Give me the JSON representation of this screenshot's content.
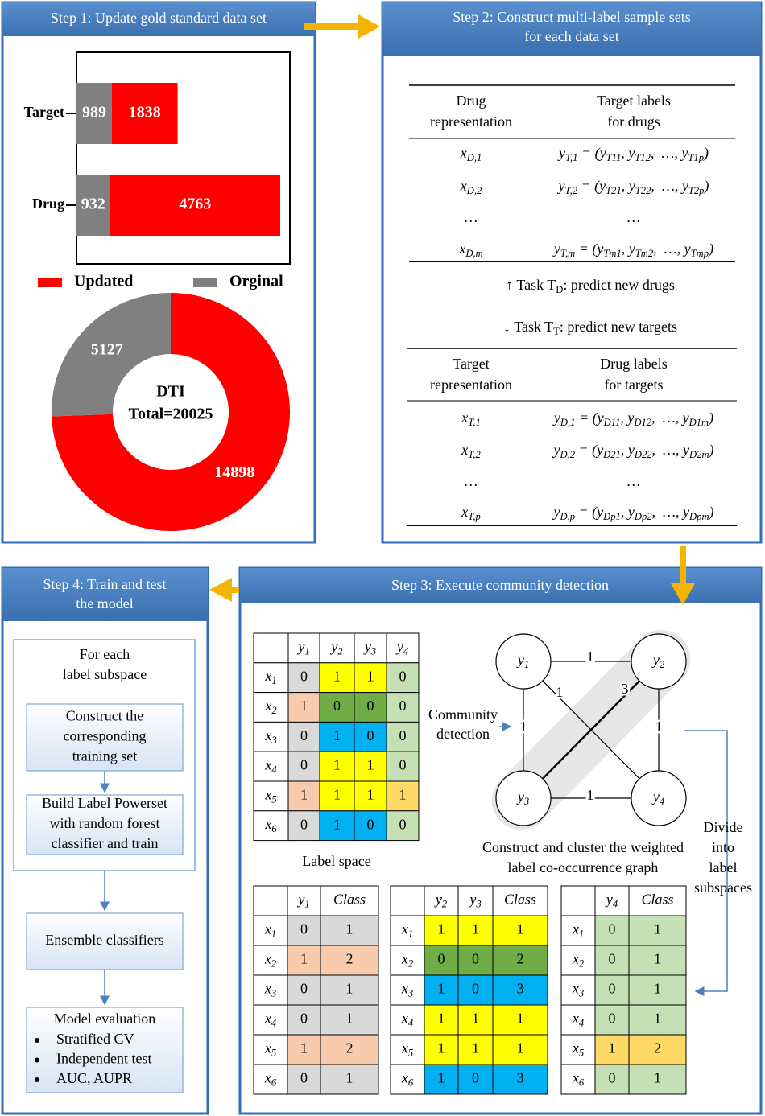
{
  "step1": {
    "title": [
      "Step 1: Update gold standard data set"
    ],
    "bar_chart": {
      "type": "bar",
      "orientation": "horizontal",
      "stacked": true,
      "categories": [
        "Target",
        "Drug"
      ],
      "series": [
        {
          "name": "Orginal",
          "color": "#808080",
          "values": [
            989,
            932
          ]
        },
        {
          "name": "Updated",
          "color": "#ff0000",
          "values": [
            1838,
            4763
          ]
        }
      ]
    },
    "donut": {
      "type": "pie",
      "title": "DTI",
      "subtitle": "Total=20025",
      "values": [
        14898,
        5127
      ],
      "colors": [
        "#ff0000",
        "#808080"
      ]
    }
  },
  "step2": {
    "title": [
      "Step 2: Construct multi-label sample sets",
      "for each data set"
    ],
    "tables": [
      {
        "header": [
          [
            "Drug",
            "representation"
          ],
          [
            "Target labels",
            "for drugs"
          ]
        ],
        "rows": [
          {
            "left": [
              {
                "t": "x",
                "s": "D,1"
              }
            ],
            "right": [
              {
                "t": "y",
                "s": "T,1"
              },
              {
                "t": " = (y",
                "s": "T11"
              },
              {
                "t": ", y",
                "s": "T12"
              },
              {
                "t": ",  …, y",
                "s": "T1p"
              },
              {
                "t": ")"
              }
            ]
          },
          {
            "left": [
              {
                "t": "x",
                "s": "D,2"
              }
            ],
            "right": [
              {
                "t": "y",
                "s": "T,2"
              },
              {
                "t": " = (y",
                "s": "T21"
              },
              {
                "t": ", y",
                "s": "T22"
              },
              {
                "t": ",  …, y",
                "s": "T2p"
              },
              {
                "t": ")"
              }
            ]
          },
          {
            "left": [
              {
                "t": "…"
              }
            ],
            "right": [
              {
                "t": "…"
              }
            ]
          },
          {
            "left": [
              {
                "t": "x",
                "s": "D,m"
              }
            ],
            "right": [
              {
                "t": "y",
                "s": "T,m"
              },
              {
                "t": " = (y",
                "s": "Tm1"
              },
              {
                "t": ", y",
                "s": "Tm2"
              },
              {
                "t": ",  …, y",
                "s": "Tmp"
              },
              {
                "t": ")"
              }
            ]
          }
        ]
      },
      {
        "header": [
          [
            "Target",
            "representation"
          ],
          [
            "Drug labels",
            "for targets"
          ]
        ],
        "rows": [
          {
            "left": [
              {
                "t": "x",
                "s": "T,1"
              }
            ],
            "right": [
              {
                "t": "y",
                "s": "D,1"
              },
              {
                "t": " = (y",
                "s": "D11"
              },
              {
                "t": ", y",
                "s": "D12"
              },
              {
                "t": ",  …, y",
                "s": "D1m"
              },
              {
                "t": ")"
              }
            ]
          },
          {
            "left": [
              {
                "t": "x",
                "s": "T,2"
              }
            ],
            "right": [
              {
                "t": "y",
                "s": "D,2"
              },
              {
                "t": " = (y",
                "s": "D21"
              },
              {
                "t": ", y",
                "s": "D22"
              },
              {
                "t": ",  …, y",
                "s": "D2m"
              },
              {
                "t": ")"
              }
            ]
          },
          {
            "left": [
              {
                "t": "…"
              }
            ],
            "right": [
              {
                "t": "…"
              }
            ]
          },
          {
            "left": [
              {
                "t": "x",
                "s": "T,p"
              }
            ],
            "right": [
              {
                "t": "y",
                "s": "D,p"
              },
              {
                "t": " = (y",
                "s": "Dp1"
              },
              {
                "t": ", y",
                "s": "Dp2"
              },
              {
                "t": ",  …, y",
                "s": "Dpm"
              },
              {
                "t": ")"
              }
            ]
          }
        ]
      }
    ],
    "tasks": [
      [
        {
          "t": "↑ Task T",
          "s": "D"
        },
        {
          "t": ": predict new drugs"
        }
      ],
      [
        {
          "t": "↓ Task T",
          "s": "T"
        },
        {
          "t": ": predict new targets"
        }
      ]
    ]
  },
  "step3": {
    "title": [
      "Step 3: Execute community detection"
    ],
    "label_space": {
      "columns": [
        [
          {
            "t": "y",
            "s": "1"
          }
        ],
        [
          {
            "t": "y",
            "s": "2"
          }
        ],
        [
          {
            "t": "y",
            "s": "3"
          }
        ],
        [
          {
            "t": "y",
            "s": "4"
          }
        ]
      ],
      "rows": [
        {
          "label": [
            {
              "t": "x",
              "s": "1"
            }
          ],
          "values": [
            0,
            1,
            1,
            0
          ]
        },
        {
          "label": [
            {
              "t": "x",
              "s": "2"
            }
          ],
          "values": [
            1,
            0,
            0,
            0
          ]
        },
        {
          "label": [
            {
              "t": "x",
              "s": "3"
            }
          ],
          "values": [
            0,
            1,
            0,
            0
          ]
        },
        {
          "label": [
            {
              "t": "x",
              "s": "4"
            }
          ],
          "values": [
            0,
            1,
            1,
            0
          ]
        },
        {
          "label": [
            {
              "t": "x",
              "s": "5"
            }
          ],
          "values": [
            1,
            1,
            1,
            1
          ]
        },
        {
          "label": [
            {
              "t": "x",
              "s": "6"
            }
          ],
          "values": [
            0,
            1,
            0,
            0
          ]
        }
      ],
      "caption": "Label space"
    },
    "community_detection": [
      "Community",
      "detection"
    ],
    "graph": {
      "nodes": [
        [
          {
            "t": "y",
            "s": "1"
          }
        ],
        [
          {
            "t": "y",
            "s": "2"
          }
        ],
        [
          {
            "t": "y",
            "s": "3"
          }
        ],
        [
          {
            "t": "y",
            "s": "4"
          }
        ]
      ],
      "edges": [
        {
          "weight": 1
        },
        {
          "weight": 1
        },
        {
          "weight": 1
        },
        {
          "weight": 3
        },
        {
          "weight": 1
        },
        {
          "weight": 1
        }
      ],
      "caption": [
        "Construct and cluster the weighted",
        "label co-occurrence graph"
      ]
    },
    "divide": [
      "Divide",
      "into",
      "label",
      "subspaces"
    ],
    "subspaces": [
      {
        "columns": [
          [
            {
              "t": "y",
              "s": "1"
            }
          ],
          [
            {
              "t": "Class"
            }
          ]
        ],
        "rows": [
          {
            "label": [
              {
                "t": "x",
                "s": "1"
              }
            ],
            "values": [
              0,
              1
            ]
          },
          {
            "label": [
              {
                "t": "x",
                "s": "2"
              }
            ],
            "values": [
              1,
              2
            ]
          },
          {
            "label": [
              {
                "t": "x",
                "s": "3"
              }
            ],
            "values": [
              0,
              1
            ]
          },
          {
            "label": [
              {
                "t": "x",
                "s": "4"
              }
            ],
            "values": [
              0,
              1
            ]
          },
          {
            "label": [
              {
                "t": "x",
                "s": "5"
              }
            ],
            "values": [
              1,
              2
            ]
          },
          {
            "label": [
              {
                "t": "x",
                "s": "6"
              }
            ],
            "values": [
              0,
              1
            ]
          }
        ]
      },
      {
        "columns": [
          [
            {
              "t": "y",
              "s": "2"
            }
          ],
          [
            {
              "t": "y",
              "s": "3"
            }
          ],
          [
            {
              "t": "Class"
            }
          ]
        ],
        "rows": [
          {
            "label": [
              {
                "t": "x",
                "s": "1"
              }
            ],
            "values": [
              1,
              1,
              1
            ]
          },
          {
            "label": [
              {
                "t": "x",
                "s": "2"
              }
            ],
            "values": [
              0,
              0,
              2
            ]
          },
          {
            "label": [
              {
                "t": "x",
                "s": "3"
              }
            ],
            "values": [
              1,
              0,
              3
            ]
          },
          {
            "label": [
              {
                "t": "x",
                "s": "4"
              }
            ],
            "values": [
              1,
              1,
              1
            ]
          },
          {
            "label": [
              {
                "t": "x",
                "s": "5"
              }
            ],
            "values": [
              1,
              1,
              1
            ]
          },
          {
            "label": [
              {
                "t": "x",
                "s": "6"
              }
            ],
            "values": [
              1,
              0,
              3
            ]
          }
        ]
      },
      {
        "columns": [
          [
            {
              "t": "y",
              "s": "4"
            }
          ],
          [
            {
              "t": "Class"
            }
          ]
        ],
        "rows": [
          {
            "label": [
              {
                "t": "x",
                "s": "1"
              }
            ],
            "values": [
              0,
              1
            ]
          },
          {
            "label": [
              {
                "t": "x",
                "s": "2"
              }
            ],
            "values": [
              0,
              1
            ]
          },
          {
            "label": [
              {
                "t": "x",
                "s": "3"
              }
            ],
            "values": [
              0,
              1
            ]
          },
          {
            "label": [
              {
                "t": "x",
                "s": "4"
              }
            ],
            "values": [
              0,
              1
            ]
          },
          {
            "label": [
              {
                "t": "x",
                "s": "5"
              }
            ],
            "values": [
              1,
              2
            ]
          },
          {
            "label": [
              {
                "t": "x",
                "s": "6"
              }
            ],
            "values": [
              0,
              1
            ]
          }
        ]
      }
    ]
  },
  "step4": {
    "title": [
      "Step 4: Train and test",
      "the model"
    ],
    "loop": [
      "For each",
      "label subspace"
    ],
    "boxes": [
      [
        "Construct the",
        "corresponding",
        "training set"
      ],
      [
        "Build Label Powerset",
        "with random forest",
        "classifier and train"
      ],
      [
        "Ensemble classifiers"
      ]
    ],
    "evaluation": {
      "title": "Model evaluation",
      "items": [
        "Stratified CV",
        "Independent test",
        "AUC, AUPR"
      ]
    }
  }
}
